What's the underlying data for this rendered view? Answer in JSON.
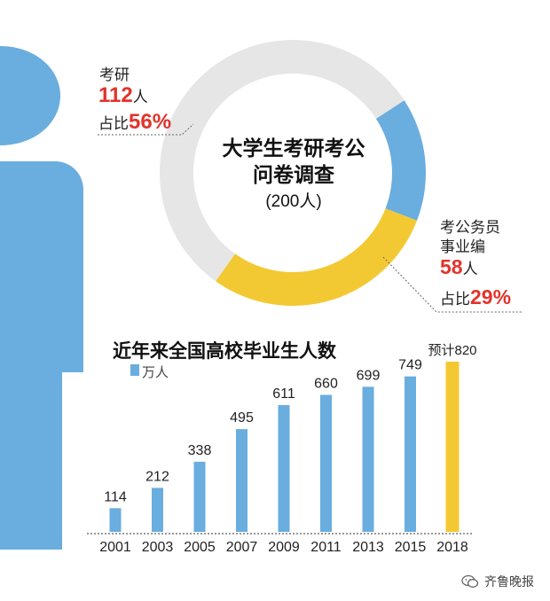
{
  "colors": {
    "blue": "#6aaddf",
    "yellow": "#f3c933",
    "gray": "#e6e6e6",
    "red": "#e2332b",
    "figure": "#6aaddf"
  },
  "survey": {
    "title_line1": "大学生考研考公",
    "title_line2": "问卷调查",
    "total": "(200人)",
    "kaoyan": {
      "label": "考研",
      "count_value": "112",
      "count_unit": "人",
      "share_prefix": "占比",
      "share_value": "56%"
    },
    "gongwu": {
      "label_line1": "考公务员",
      "label_line2": "事业编",
      "count_value": "58",
      "count_unit": "人",
      "share_prefix": "占比",
      "share_value": "29%"
    }
  },
  "chart_data": [
    {
      "type": "pie",
      "title": "大学生考研考公问卷调查",
      "subtitle": "(200人)",
      "slices": [
        {
          "label": "考研",
          "value": 112,
          "percent": 56,
          "color": "#e6e6e6"
        },
        {
          "label": "考公务员事业编",
          "value": 58,
          "percent": 29,
          "color": "#f3c933"
        },
        {
          "label": "",
          "value": 30,
          "percent": 15,
          "color": "#6aaddf"
        }
      ]
    },
    {
      "type": "bar",
      "title": "近年来全国高校毕业生人数",
      "legend": "万人",
      "categories": [
        "2001",
        "2003",
        "2005",
        "2007",
        "2009",
        "2011",
        "2013",
        "2015",
        "2018"
      ],
      "values": [
        114,
        212,
        338,
        495,
        611,
        660,
        699,
        749,
        820
      ],
      "value_labels": [
        "114",
        "212",
        "338",
        "495",
        "611",
        "660",
        "699",
        "749",
        "预计820"
      ],
      "colors": [
        "#6aaddf",
        "#6aaddf",
        "#6aaddf",
        "#6aaddf",
        "#6aaddf",
        "#6aaddf",
        "#6aaddf",
        "#6aaddf",
        "#f3c933"
      ],
      "ylim": [
        0,
        820
      ],
      "grid": false
    }
  ],
  "footer": {
    "source": "齐鲁晚报"
  }
}
